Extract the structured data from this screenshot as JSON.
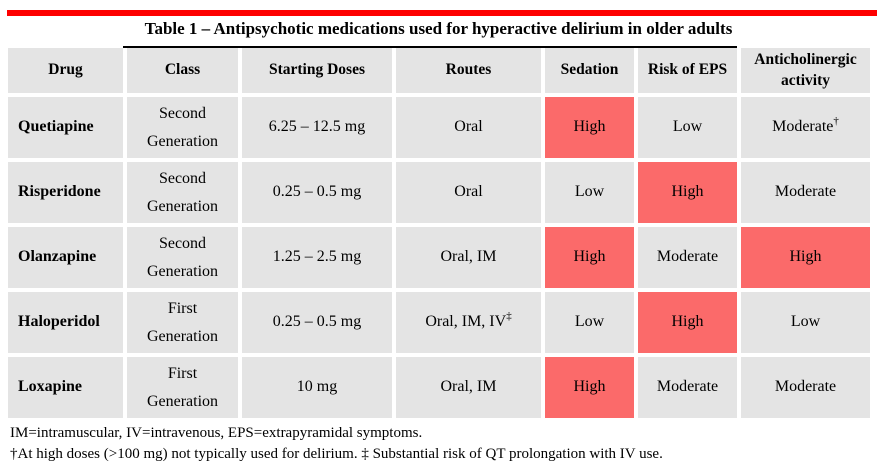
{
  "colors": {
    "bar": "#fe0000",
    "cell": "#e4e4e4",
    "highlight": "#fb6a6a",
    "text": "#000000"
  },
  "title": "Table 1 – Antipsychotic medications used for hyperactive delirium in older adults",
  "headers": {
    "drug": "Drug",
    "class": "Class",
    "doses": "Starting Doses",
    "routes": "Routes",
    "sedation": "Sedation",
    "eps": "Risk of EPS",
    "anticholinergic": "Anticholinergic activity"
  },
  "rows": [
    {
      "drug": "Quetiapine",
      "class_l1": "Second",
      "class_l2": "Generation",
      "dose": "6.25 – 12.5 mg",
      "routes": "Oral",
      "routes_sup": "",
      "sedation": "High",
      "eps": "Low",
      "antichol": "Moderate",
      "antichol_sup": "†",
      "hl": {
        "sedation": true,
        "eps": false,
        "antichol": false
      }
    },
    {
      "drug": "Risperidone",
      "class_l1": "Second",
      "class_l2": "Generation",
      "dose": "0.25 – 0.5 mg",
      "routes": "Oral",
      "routes_sup": "",
      "sedation": "Low",
      "eps": "High",
      "antichol": "Moderate",
      "antichol_sup": "",
      "hl": {
        "sedation": false,
        "eps": true,
        "antichol": false
      }
    },
    {
      "drug": "Olanzapine",
      "class_l1": "Second",
      "class_l2": "Generation",
      "dose": "1.25 – 2.5 mg",
      "routes": "Oral, IM",
      "routes_sup": "",
      "sedation": "High",
      "eps": "Moderate",
      "antichol": "High",
      "antichol_sup": "",
      "hl": {
        "sedation": true,
        "eps": false,
        "antichol": true
      }
    },
    {
      "drug": "Haloperidol",
      "class_l1": "First",
      "class_l2": "Generation",
      "dose": "0.25 – 0.5 mg",
      "routes": "Oral, IM, IV",
      "routes_sup": "‡",
      "sedation": "Low",
      "eps": "High",
      "antichol": "Low",
      "antichol_sup": "",
      "hl": {
        "sedation": false,
        "eps": true,
        "antichol": false
      }
    },
    {
      "drug": "Loxapine",
      "class_l1": "First",
      "class_l2": "Generation",
      "dose": "10 mg",
      "routes": "Oral, IM",
      "routes_sup": "",
      "sedation": "High",
      "eps": "Moderate",
      "antichol": "Moderate",
      "antichol_sup": "",
      "hl": {
        "sedation": true,
        "eps": false,
        "antichol": false
      }
    }
  ],
  "footnotes": {
    "line1": "IM=intramuscular, IV=intravenous, EPS=extrapyramidal symptoms.",
    "line2": "†At high doses (>100 mg) not typically used for delirium. ‡ Substantial risk of QT prolongation with IV use."
  }
}
